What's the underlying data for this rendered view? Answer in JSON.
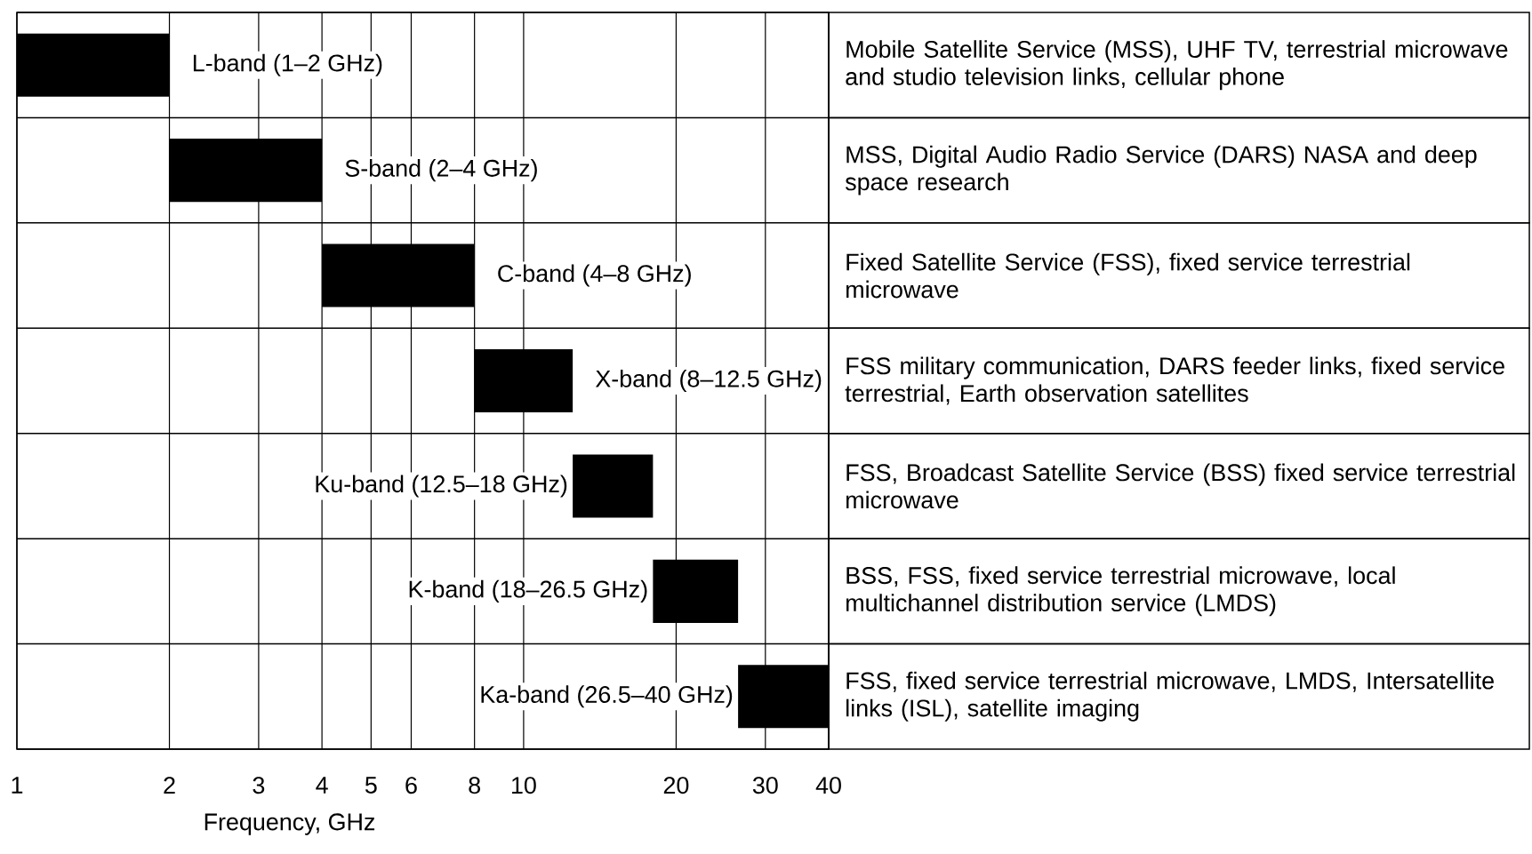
{
  "chart_data": {
    "type": "bar",
    "orientation": "horizontal",
    "log": "x",
    "categories": [
      "L-band (1–2 GHz)",
      "S-band (2–4 GHz)",
      "C-band (4–8 GHz)",
      "X-band (8–12.5 GHz)",
      "Ku-band (12.5–18 GHz)",
      "K-band (18–26.5 GHz)",
      "Ka-band (26.5–40 GHz)"
    ],
    "base": [
      1,
      2,
      4,
      8,
      12.5,
      18,
      26.5
    ],
    "values": [
      1,
      2,
      4,
      4.5,
      5.5,
      8.5,
      13.5
    ],
    "color": "#000000",
    "xlabel": "Frequency, GHz",
    "xlim": [
      1,
      40
    ],
    "xticks": [
      1,
      2,
      3,
      4,
      5,
      6,
      8,
      10,
      20,
      30,
      40
    ],
    "grid": "x",
    "annotations": [
      "Mobile Satellite Service (MSS), UHF TV, terrestrial microwave and studio television links, cellular phone",
      "MSS, Digital Audio Radio Service (DARS) NASA and deep space research",
      "Fixed Satellite Service (FSS), fixed service terrestrial microwave",
      "FSS military communication, DARS feeder links, fixed service terrestrial, Earth observation satellites",
      "FSS, Broadcast Satellite Service (BSS) fixed service terrestrial microwave",
      "BSS, FSS, fixed service terrestrial microwave, local multichannel distribution service (LMDS)",
      "FSS, fixed service terrestrial microwave, LMDS, Intersatellite links (ISL), satellite imaging"
    ]
  }
}
